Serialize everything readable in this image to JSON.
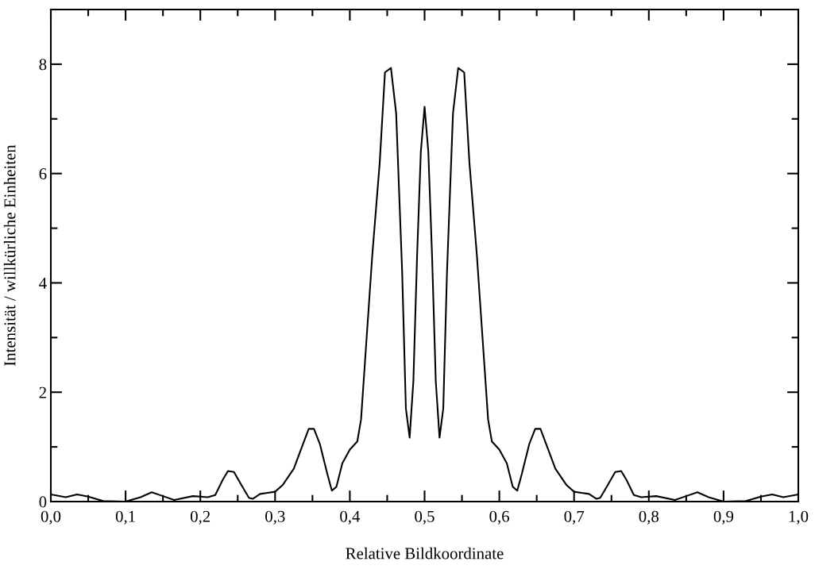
{
  "chart_data": {
    "type": "line",
    "xlabel": "Relative Bildkoordinate",
    "ylabel": "Intensität / willkürliche Einheiten",
    "xlim": [
      0,
      1
    ],
    "ylim": [
      0,
      9
    ],
    "xticks": [
      {
        "value": 0,
        "label": "0,0"
      },
      {
        "value": 0.1,
        "label": "0,1"
      },
      {
        "value": 0.2,
        "label": "0,2"
      },
      {
        "value": 0.3,
        "label": "0,3"
      },
      {
        "value": 0.4,
        "label": "0,4"
      },
      {
        "value": 0.5,
        "label": "0,5"
      },
      {
        "value": 0.6,
        "label": "0,6"
      },
      {
        "value": 0.7,
        "label": "0,7"
      },
      {
        "value": 0.8,
        "label": "0,8"
      },
      {
        "value": 0.9,
        "label": "0,9"
      },
      {
        "value": 1.0,
        "label": "1,0"
      }
    ],
    "yticks": [
      0,
      2,
      4,
      6,
      8
    ],
    "grid": false,
    "marker": "none",
    "line_style": "solid",
    "series": [
      {
        "color": "#000000",
        "x": [
          0.0,
          0.02,
          0.035,
          0.05,
          0.07,
          0.1,
          0.12,
          0.135,
          0.15,
          0.165,
          0.19,
          0.21,
          0.22,
          0.23,
          0.237,
          0.245,
          0.255,
          0.265,
          0.27,
          0.28,
          0.29,
          0.3,
          0.31,
          0.325,
          0.34,
          0.345,
          0.352,
          0.36,
          0.37,
          0.376,
          0.382,
          0.39,
          0.4,
          0.41,
          0.415,
          0.42,
          0.43,
          0.44,
          0.447,
          0.455,
          0.462,
          0.47,
          0.475,
          0.48,
          0.485,
          0.49,
          0.495,
          0.5,
          0.505,
          0.51,
          0.515,
          0.52,
          0.525,
          0.53,
          0.538,
          0.545,
          0.553,
          0.56,
          0.57,
          0.58,
          0.585,
          0.59,
          0.6,
          0.61,
          0.618,
          0.624,
          0.63,
          0.64,
          0.648,
          0.655,
          0.66,
          0.675,
          0.69,
          0.7,
          0.71,
          0.72,
          0.73,
          0.735,
          0.745,
          0.755,
          0.763,
          0.77,
          0.78,
          0.79,
          0.81,
          0.835,
          0.85,
          0.865,
          0.88,
          0.9,
          0.93,
          0.95,
          0.965,
          0.98,
          1.0
        ],
        "values": [
          0.13,
          0.08,
          0.13,
          0.09,
          0.01,
          0.0,
          0.08,
          0.17,
          0.1,
          0.03,
          0.1,
          0.08,
          0.12,
          0.4,
          0.56,
          0.54,
          0.3,
          0.07,
          0.05,
          0.14,
          0.16,
          0.18,
          0.3,
          0.6,
          1.15,
          1.33,
          1.33,
          1.05,
          0.5,
          0.2,
          0.27,
          0.7,
          0.95,
          1.1,
          1.5,
          2.5,
          4.5,
          6.2,
          7.85,
          7.93,
          7.1,
          4.2,
          1.7,
          1.17,
          2.2,
          4.5,
          6.4,
          7.22,
          6.4,
          4.5,
          2.2,
          1.17,
          1.7,
          4.2,
          7.1,
          7.93,
          7.85,
          6.2,
          4.5,
          2.5,
          1.5,
          1.1,
          0.95,
          0.7,
          0.27,
          0.2,
          0.5,
          1.05,
          1.33,
          1.33,
          1.15,
          0.6,
          0.3,
          0.18,
          0.16,
          0.14,
          0.05,
          0.07,
          0.3,
          0.54,
          0.56,
          0.4,
          0.12,
          0.08,
          0.1,
          0.03,
          0.1,
          0.17,
          0.08,
          0.0,
          0.01,
          0.09,
          0.13,
          0.08,
          0.13
        ]
      }
    ]
  }
}
